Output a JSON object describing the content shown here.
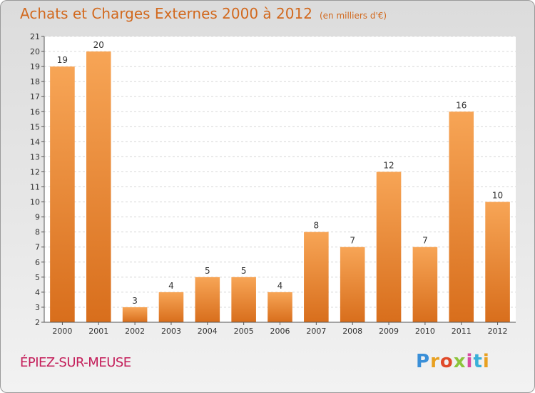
{
  "chart_title": "Achats et Charges Externes 2000 à 2012",
  "chart_unit": "(en milliers d'€)",
  "commune_name": "ÉPIEZ-SUR-MEUSE",
  "logo": {
    "letters": [
      "P",
      "r",
      "o",
      "x",
      "i",
      "t",
      "i"
    ],
    "colors": [
      "#3a8fd8",
      "#e8a020",
      "#e04a2a",
      "#8cc43c",
      "#d84aa0",
      "#3ab0d8",
      "#e8a020"
    ]
  },
  "colors": {
    "bar_top": "#f7a556",
    "bar_bottom": "#d86e1c",
    "title": "#d2691e",
    "commune": "#c41e5a"
  },
  "chart_data": {
    "type": "bar",
    "categories": [
      "2000",
      "2001",
      "2002",
      "2003",
      "2004",
      "2005",
      "2006",
      "2007",
      "2008",
      "2009",
      "2010",
      "2011",
      "2012"
    ],
    "values": [
      19,
      20,
      3,
      4,
      5,
      5,
      4,
      8,
      7,
      12,
      7,
      16,
      10
    ],
    "title": "Achats et Charges Externes 2000 à 2012",
    "xlabel": "",
    "ylabel": "",
    "ylim": [
      2,
      21
    ],
    "yticks": [
      2,
      3,
      4,
      5,
      6,
      7,
      8,
      9,
      10,
      11,
      12,
      13,
      14,
      15,
      16,
      17,
      18,
      19,
      20,
      21
    ],
    "grid": true,
    "legend": "none"
  }
}
